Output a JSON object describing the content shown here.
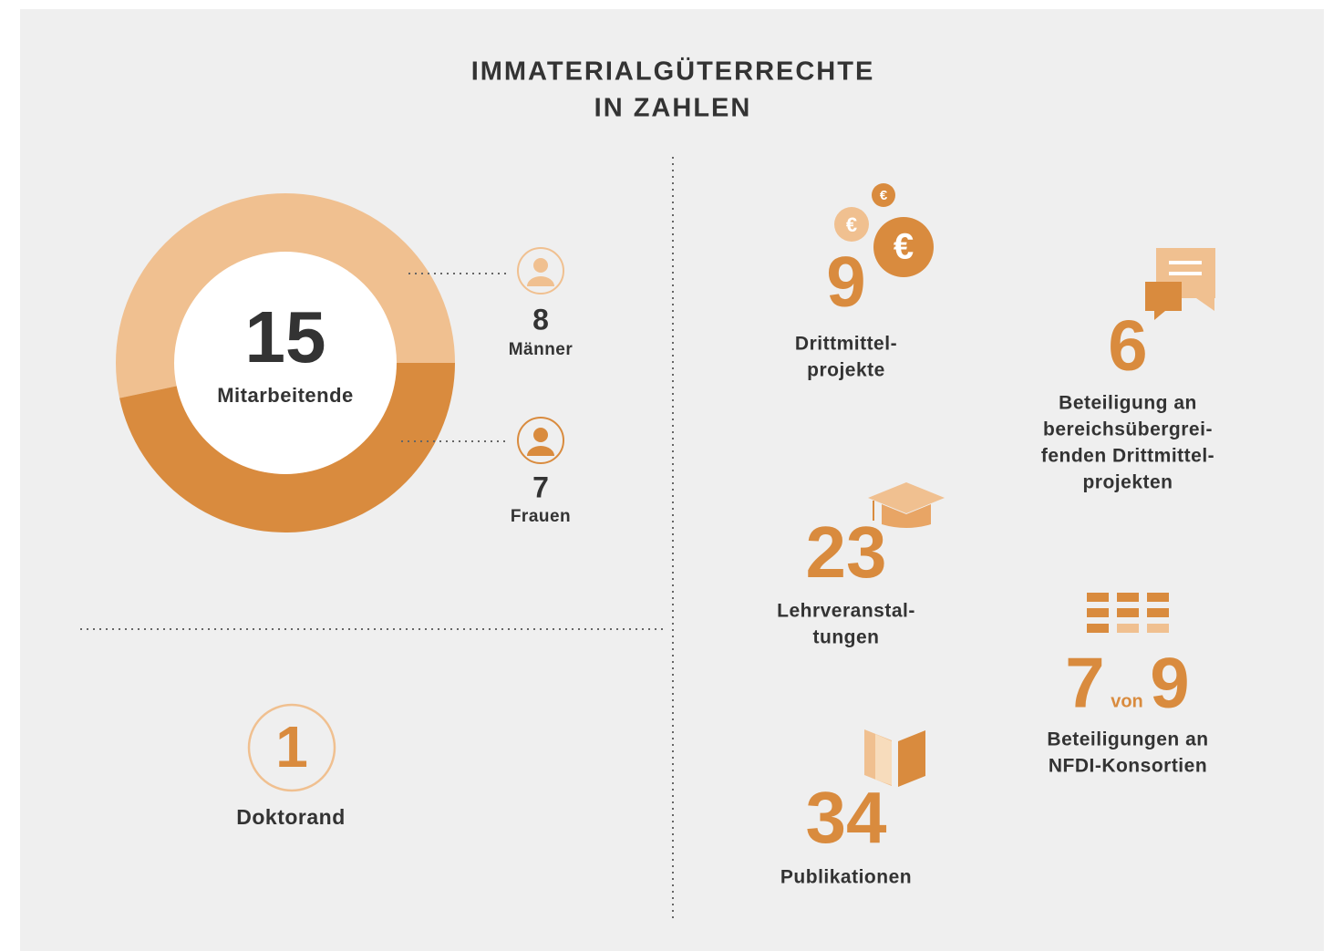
{
  "title_lines": [
    "IMMATERIALGÜTERRECHTE",
    "IN ZAHLEN"
  ],
  "staff": {
    "total": 15,
    "label": "Mitarbeitende",
    "groups": [
      {
        "value": 8,
        "label": "Männer",
        "color": "#f0c090"
      },
      {
        "value": 7,
        "label": "Frauen",
        "color": "#d98b3e"
      }
    ]
  },
  "doctoral": {
    "value": 1,
    "label": "Doktorand"
  },
  "stats": [
    {
      "value": 9,
      "label_lines": [
        "Drittmittel-",
        "projekte"
      ]
    },
    {
      "value": 6,
      "label_lines": [
        "Beteiligung an",
        "bereichsübergrei-",
        "fenden Drittmittel-",
        "projekten"
      ]
    },
    {
      "value": 23,
      "label_lines": [
        "Lehrveranstal-",
        "tungen"
      ]
    },
    {
      "value": 7,
      "connector": "von",
      "total": 9,
      "label_lines": [
        "Beteiligungen an",
        "NFDI-Konsortien"
      ]
    },
    {
      "value": 34,
      "label_lines": [
        "Publikationen"
      ]
    }
  ]
}
